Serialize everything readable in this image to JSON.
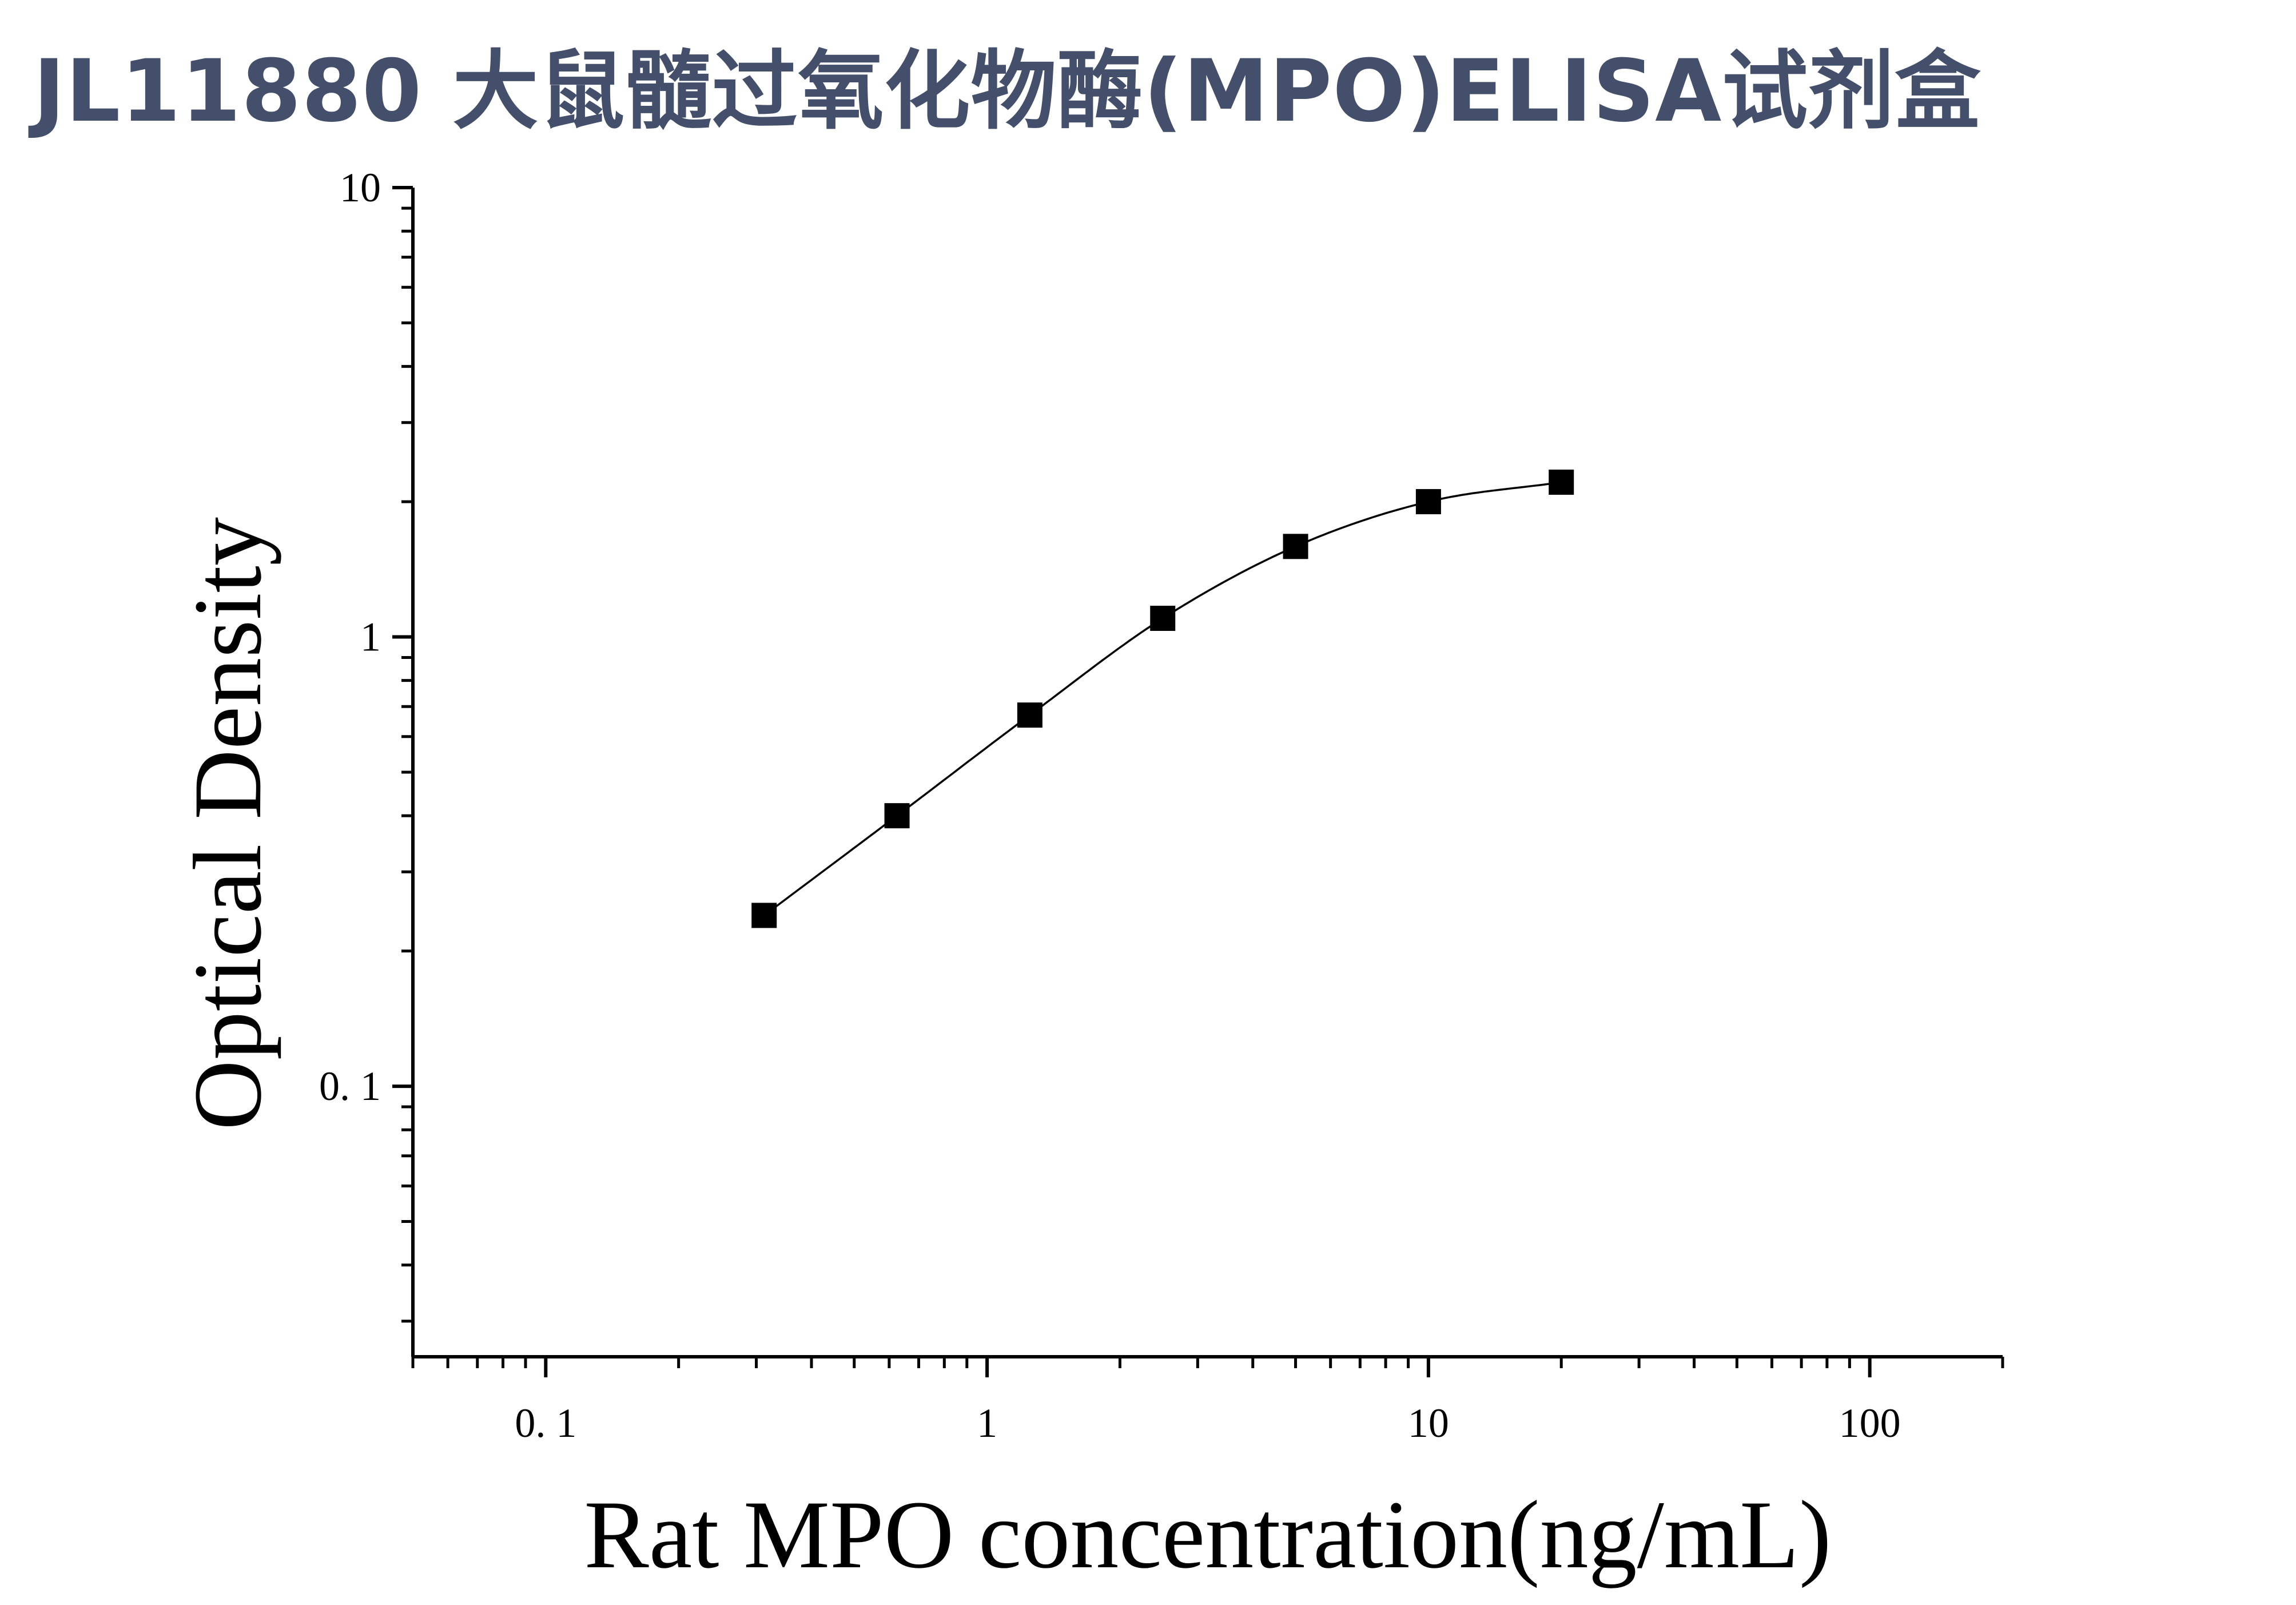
{
  "title": "JL11880 大鼠髓过氧化物酶(MPO)ELISA试剂盒",
  "chart_data": {
    "type": "scatter",
    "title": "JL11880 大鼠髓过氧化物酶(MPO)ELISA试剂盒",
    "xlabel": "Rat MPO concentration(ng/mL)",
    "ylabel": "Optical Density",
    "x_scale": "log",
    "y_scale": "log",
    "xlim": [
      0.05,
      200
    ],
    "ylim": [
      0.025,
      10
    ],
    "x_ticks": [
      {
        "value": 0.1,
        "label": "0. 1"
      },
      {
        "value": 1,
        "label": "1"
      },
      {
        "value": 10,
        "label": "10"
      },
      {
        "value": 100,
        "label": "100"
      }
    ],
    "y_ticks": [
      {
        "value": 0.1,
        "label": "0. 1"
      },
      {
        "value": 1,
        "label": "1"
      },
      {
        "value": 10,
        "label": "10"
      }
    ],
    "grid": false,
    "legend": "none",
    "marker": "square",
    "fit_line": "smooth curve",
    "series": [
      {
        "x": [
          0.3125,
          0.625,
          1.25,
          2.5,
          5,
          10,
          20
        ],
        "y": [
          0.24,
          0.4,
          0.67,
          1.1,
          1.59,
          2.0,
          2.21
        ]
      }
    ],
    "colors": {
      "marker": "#000000",
      "line": "#000000",
      "title": "#44506b"
    }
  }
}
